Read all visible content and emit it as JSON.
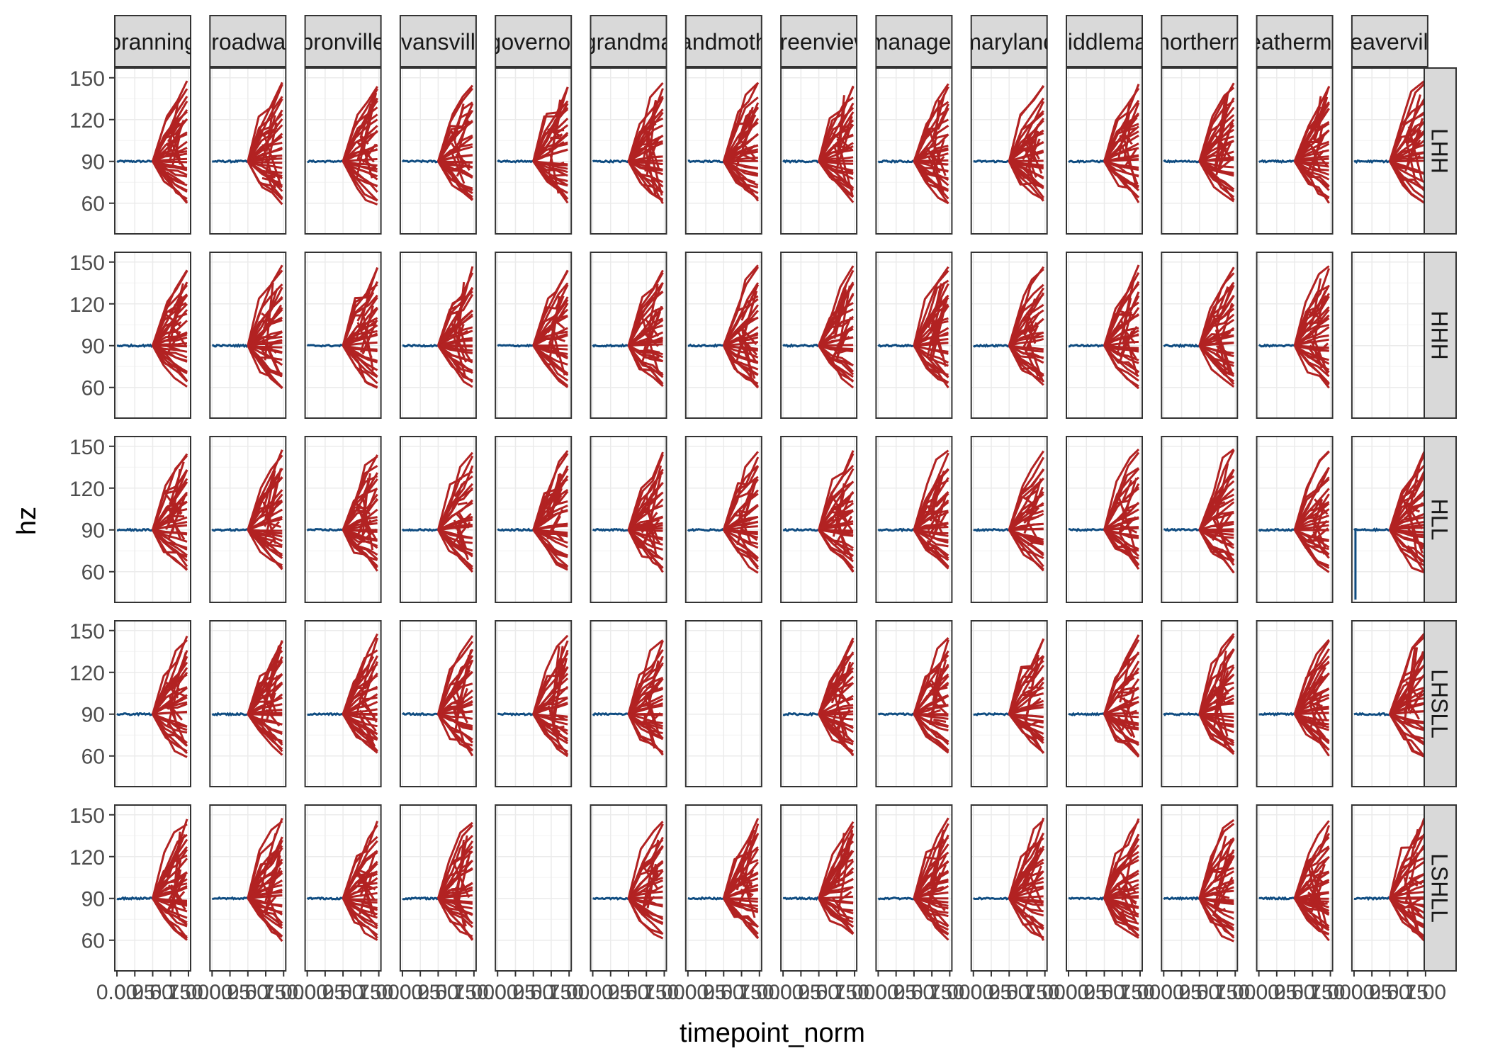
{
  "chart_data": {
    "type": "line",
    "xlabel": "timepoint_norm",
    "ylabel": "hz",
    "x_ticks": [
      0.0,
      0.25,
      0.5,
      0.75,
      1.0
    ],
    "x_tick_labels": [
      "0.00",
      "0.25",
      "0.50",
      "0.75",
      "1.00"
    ],
    "y_ticks": [
      60,
      90,
      120,
      150
    ],
    "y_tick_labels": [
      "60",
      "90",
      "120",
      "150"
    ],
    "ylim": [
      38,
      157
    ],
    "xlim": [
      -0.03,
      1.03
    ],
    "grid": true,
    "columns": [
      "branning",
      "broadway",
      "bronville",
      "evansville",
      "governor",
      "grandma",
      "grandmother",
      "greenview",
      "manager",
      "maryland",
      "middleman",
      "northern",
      "weatherman",
      "weaverville"
    ],
    "rows": [
      "LHH",
      "HHH",
      "HLL",
      "LHSLL",
      "LSHLL"
    ],
    "empty_panels": [
      [
        1,
        13
      ],
      [
        3,
        6
      ],
      [
        4,
        4
      ]
    ],
    "series": [
      {
        "name": "",
        "color": "#0F4C81",
        "description": "baseline",
        "x": [
          0.0,
          0.5
        ],
        "y": [
          90,
          90
        ]
      },
      {
        "name": "",
        "color": "#B22222",
        "description": "contour fan",
        "x": [
          0.5,
          1.0
        ],
        "y_end_range": [
          62,
          145
        ]
      }
    ],
    "anomalies": [
      {
        "row": 2,
        "col": 13,
        "note": "blue trace drops from 90 to ~40 near x=0"
      }
    ]
  },
  "colors": {
    "panel_border": "#333333",
    "strip_fill": "#d9d9d9",
    "grid": "#ebebeb",
    "blue": "#0F4C81",
    "red": "#B22222"
  }
}
